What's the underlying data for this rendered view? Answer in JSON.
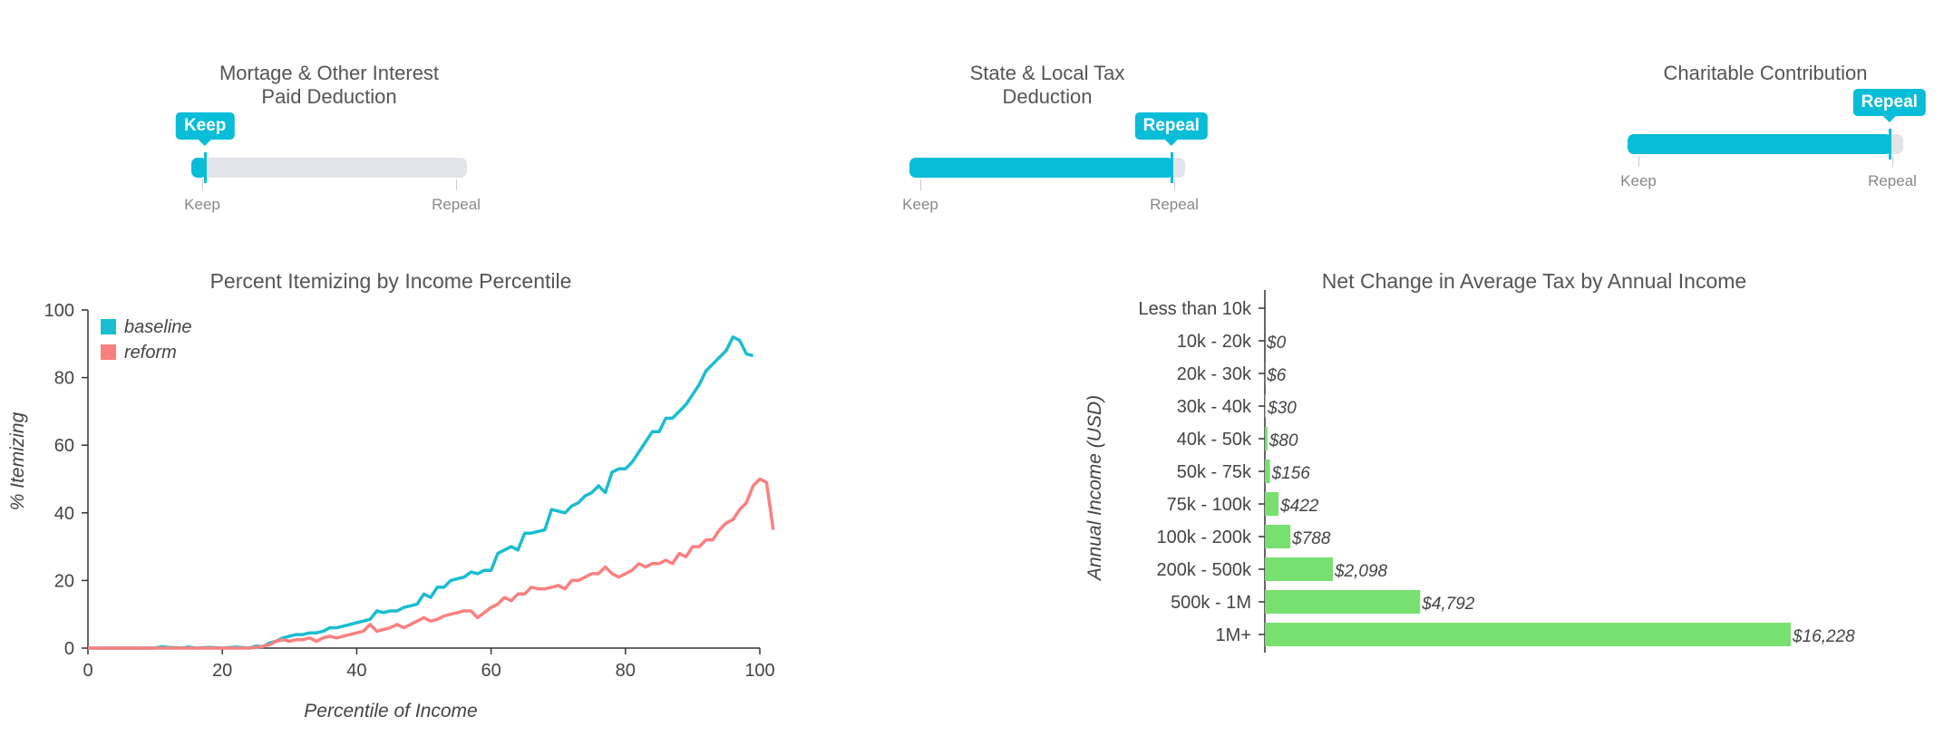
{
  "sliders": [
    {
      "title_lines": [
        "Mortage & Other Interest",
        "Paid Deduction"
      ],
      "value": "Keep",
      "fraction": 0.05,
      "min_label": "Keep",
      "max_label": "Repeal"
    },
    {
      "title_lines": [
        "State & Local Tax",
        "Deduction"
      ],
      "value": "Repeal",
      "fraction": 0.95,
      "min_label": "Keep",
      "max_label": "Repeal"
    },
    {
      "title_lines": [
        "Charitable Contribution"
      ],
      "value": "Repeal",
      "fraction": 0.95,
      "min_label": "Keep",
      "max_label": "Repeal"
    }
  ],
  "colors": {
    "accent": "#07bdd8",
    "track": "#e1e4e8",
    "baseline": "#1abdd0",
    "reform": "#fa8080",
    "bar": "#77e06f"
  },
  "chart_data": [
    {
      "type": "line",
      "title": "Percent Itemizing by Income Percentile",
      "xlabel": "Percentile of Income",
      "ylabel": "% Itemizing",
      "xlim": [
        0,
        100
      ],
      "ylim": [
        0,
        100
      ],
      "xticks": [
        0,
        20,
        40,
        60,
        80,
        100
      ],
      "yticks": [
        0,
        20,
        40,
        60,
        80,
        100
      ],
      "legend": "top-left",
      "series": [
        {
          "name": "baseline",
          "points": [
            [
              0,
              0
            ],
            [
              5,
              0
            ],
            [
              10,
              0
            ],
            [
              11,
              0.4
            ],
            [
              12,
              0.2
            ],
            [
              14,
              0
            ],
            [
              15,
              0.3
            ],
            [
              16,
              0
            ],
            [
              18,
              0.2
            ],
            [
              20,
              0
            ],
            [
              22,
              0.3
            ],
            [
              24,
              0
            ],
            [
              25,
              0.6
            ],
            [
              26,
              0.4
            ],
            [
              27,
              1.5
            ],
            [
              28,
              2
            ],
            [
              29,
              3
            ],
            [
              30,
              3.5
            ],
            [
              31,
              4
            ],
            [
              32,
              4
            ],
            [
              33,
              4.5
            ],
            [
              34,
              4.5
            ],
            [
              35,
              5
            ],
            [
              36,
              6
            ],
            [
              37,
              6
            ],
            [
              38,
              6.5
            ],
            [
              39,
              7
            ],
            [
              40,
              7.5
            ],
            [
              41,
              8
            ],
            [
              42,
              8.5
            ],
            [
              43,
              11
            ],
            [
              44,
              10.5
            ],
            [
              45,
              11
            ],
            [
              46,
              11
            ],
            [
              47,
              12
            ],
            [
              48,
              12.5
            ],
            [
              49,
              13
            ],
            [
              50,
              16
            ],
            [
              51,
              15
            ],
            [
              52,
              18
            ],
            [
              53,
              18
            ],
            [
              54,
              20
            ],
            [
              55,
              20.5
            ],
            [
              56,
              21
            ],
            [
              57,
              22.5
            ],
            [
              58,
              22
            ],
            [
              59,
              23
            ],
            [
              60,
              23
            ],
            [
              61,
              28
            ],
            [
              62,
              29
            ],
            [
              63,
              30
            ],
            [
              64,
              29
            ],
            [
              65,
              34
            ],
            [
              66,
              34
            ],
            [
              67,
              34.5
            ],
            [
              68,
              35
            ],
            [
              69,
              41
            ],
            [
              70,
              40.5
            ],
            [
              71,
              40
            ],
            [
              72,
              42
            ],
            [
              73,
              43
            ],
            [
              74,
              45
            ],
            [
              75,
              46
            ],
            [
              76,
              48
            ],
            [
              77,
              46
            ],
            [
              78,
              52
            ],
            [
              79,
              53
            ],
            [
              80,
              53
            ],
            [
              81,
              55
            ],
            [
              82,
              58
            ],
            [
              83,
              61
            ],
            [
              84,
              64
            ],
            [
              85,
              64
            ],
            [
              86,
              68
            ],
            [
              87,
              68
            ],
            [
              88,
              70
            ],
            [
              89,
              72
            ],
            [
              90,
              75
            ],
            [
              91,
              78
            ],
            [
              92,
              82
            ],
            [
              93,
              84
            ],
            [
              94,
              86
            ],
            [
              95,
              88
            ],
            [
              96,
              92
            ],
            [
              97,
              91
            ],
            [
              98,
              87
            ],
            [
              99,
              86.5
            ]
          ]
        },
        {
          "name": "reform",
          "points": [
            [
              0,
              0
            ],
            [
              5,
              0
            ],
            [
              10,
              0
            ],
            [
              12,
              0
            ],
            [
              15,
              0
            ],
            [
              18,
              0
            ],
            [
              20,
              0
            ],
            [
              22,
              0
            ],
            [
              24,
              0
            ],
            [
              25,
              0.2
            ],
            [
              26,
              0.5
            ],
            [
              27,
              1
            ],
            [
              28,
              2
            ],
            [
              29,
              2.5
            ],
            [
              30,
              2
            ],
            [
              31,
              2.5
            ],
            [
              32,
              2.5
            ],
            [
              33,
              3
            ],
            [
              34,
              2
            ],
            [
              35,
              3
            ],
            [
              36,
              3.5
            ],
            [
              37,
              3
            ],
            [
              38,
              3.5
            ],
            [
              39,
              4
            ],
            [
              40,
              4.5
            ],
            [
              41,
              5
            ],
            [
              42,
              7
            ],
            [
              43,
              5
            ],
            [
              44,
              5.5
            ],
            [
              45,
              6
            ],
            [
              46,
              7
            ],
            [
              47,
              6
            ],
            [
              48,
              7
            ],
            [
              49,
              8
            ],
            [
              50,
              9
            ],
            [
              51,
              8
            ],
            [
              52,
              8.5
            ],
            [
              53,
              9.5
            ],
            [
              54,
              10
            ],
            [
              55,
              10.5
            ],
            [
              56,
              11
            ],
            [
              57,
              11
            ],
            [
              58,
              9
            ],
            [
              59,
              10.5
            ],
            [
              60,
              12
            ],
            [
              61,
              13
            ],
            [
              62,
              15
            ],
            [
              63,
              14
            ],
            [
              64,
              16
            ],
            [
              65,
              16
            ],
            [
              66,
              18
            ],
            [
              67,
              17.5
            ],
            [
              68,
              17.5
            ],
            [
              69,
              18
            ],
            [
              70,
              18.5
            ],
            [
              71,
              17.5
            ],
            [
              72,
              20
            ],
            [
              73,
              20
            ],
            [
              74,
              21
            ],
            [
              75,
              22
            ],
            [
              76,
              22
            ],
            [
              77,
              24
            ],
            [
              78,
              22
            ],
            [
              79,
              21
            ],
            [
              80,
              22
            ],
            [
              81,
              23
            ],
            [
              82,
              25
            ],
            [
              83,
              24
            ],
            [
              84,
              25
            ],
            [
              85,
              25
            ],
            [
              86,
              26
            ],
            [
              87,
              25
            ],
            [
              88,
              28
            ],
            [
              89,
              27
            ],
            [
              90,
              30
            ],
            [
              91,
              30
            ],
            [
              92,
              32
            ],
            [
              93,
              32
            ],
            [
              94,
              35
            ],
            [
              95,
              37
            ],
            [
              96,
              38
            ],
            [
              97,
              41
            ],
            [
              98,
              43
            ],
            [
              99,
              48
            ],
            [
              100,
              50
            ],
            [
              101,
              49
            ],
            [
              102,
              35
            ]
          ]
        }
      ]
    },
    {
      "type": "bar",
      "orientation": "horizontal",
      "title": "Net Change in Average Tax by Annual Income",
      "xlabel": "",
      "ylabel": "Annual Income (USD)",
      "grid": false,
      "categories": [
        "Less than 10k",
        "10k - 20k",
        "20k - 30k",
        "30k - 40k",
        "40k - 50k",
        "50k - 75k",
        "75k - 100k",
        "100k - 200k",
        "200k - 500k",
        "500k - 1M",
        "1M+"
      ],
      "values": [
        null,
        0,
        6,
        30,
        80,
        156,
        422,
        788,
        2098,
        4792,
        16228
      ],
      "value_labels": [
        "",
        "$0",
        "$6",
        "$30",
        "$80",
        "$156",
        "$422",
        "$788",
        "$2,098",
        "$4,792",
        "$16,228"
      ]
    }
  ]
}
